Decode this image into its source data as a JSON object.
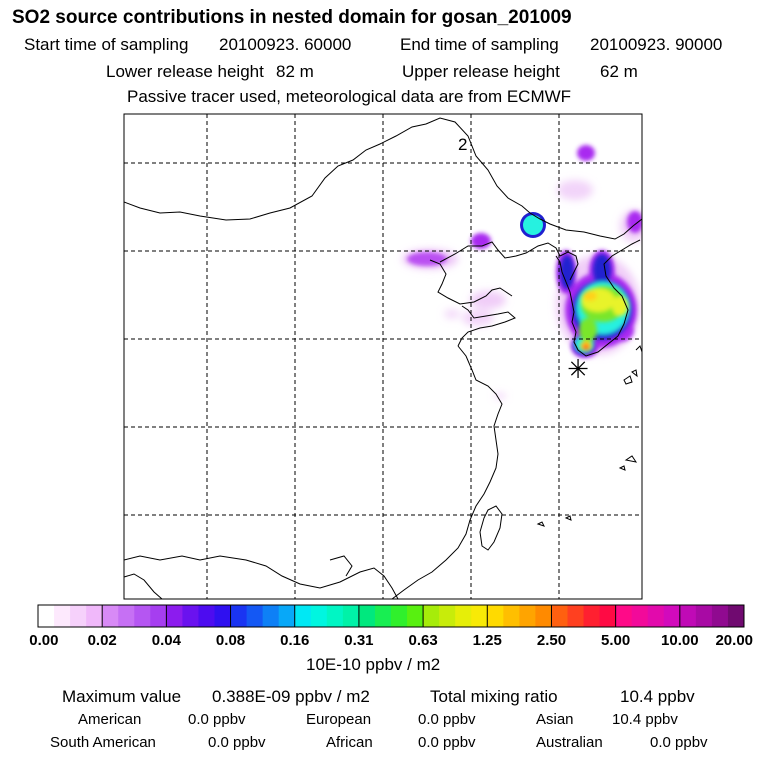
{
  "header": {
    "title": "SO2 source contributions in nested domain for gosan_201009",
    "start_label": "Start time of sampling",
    "start_value": "20100923. 60000",
    "end_label": "End time of sampling",
    "end_value": "20100923. 90000",
    "lower_label": "Lower release height",
    "lower_value": "82 m",
    "upper_label": "Upper release height",
    "upper_value": "62 m",
    "note": "Passive tracer used, meteorological data are from ECMWF"
  },
  "map": {
    "grid_label": "2",
    "receptor_symbol": "✳",
    "plume_colors": [
      "#e9b8f5",
      "#a92af0",
      "#26f1e0",
      "#2020d0",
      "#7ae62a",
      "#e8f32c",
      "#ffd21a",
      "#ff5a1a"
    ]
  },
  "colorbar": {
    "unit": "10E-10 ppbv / m2",
    "labels": [
      "0.00",
      "0.02",
      "0.04",
      "0.08",
      "0.16",
      "0.31",
      "0.63",
      "1.25",
      "2.50",
      "5.00",
      "10.00",
      "20.00"
    ],
    "colors": [
      "#ffffff",
      "#fde9fd",
      "#f6d1fb",
      "#f0b8fa",
      "#d88af6",
      "#c670f4",
      "#b556f2",
      "#a63ef0",
      "#8c1cee",
      "#6a12ef",
      "#4d0cf0",
      "#2f10f0",
      "#1a34f2",
      "#1458f4",
      "#0e80f6",
      "#08a8f8",
      "#00e8f4",
      "#00f6e0",
      "#00f6c4",
      "#00f2a8",
      "#00e87e",
      "#18ee52",
      "#30f02c",
      "#58f010",
      "#a6ec0a",
      "#c8ec0a",
      "#e6ee08",
      "#f8ea06",
      "#ffda00",
      "#ffbf00",
      "#ffa400",
      "#ff8a00",
      "#ff6010",
      "#ff4020",
      "#ff2030",
      "#ff0a44",
      "#ff0a88",
      "#f20a9a",
      "#e20aac",
      "#d20abc",
      "#c00ab6",
      "#a80aa4",
      "#900a90",
      "#700a70"
    ]
  },
  "stats": {
    "max_label": "Maximum value",
    "max_value": "0.388E-09 ppbv / m2",
    "total_label": "Total mixing ratio",
    "total_value": "10.4 ppbv",
    "american_label": "American",
    "american_value": "0.0 ppbv",
    "european_label": "European",
    "european_value": "0.0 ppbv",
    "asian_label": "Asian",
    "asian_value": "10.4 ppbv",
    "south_american_label": "South American",
    "south_american_value": "0.0 ppbv",
    "african_label": "African",
    "african_value": "0.0 ppbv",
    "australian_label": "Australian",
    "australian_value": "0.0 ppbv"
  }
}
